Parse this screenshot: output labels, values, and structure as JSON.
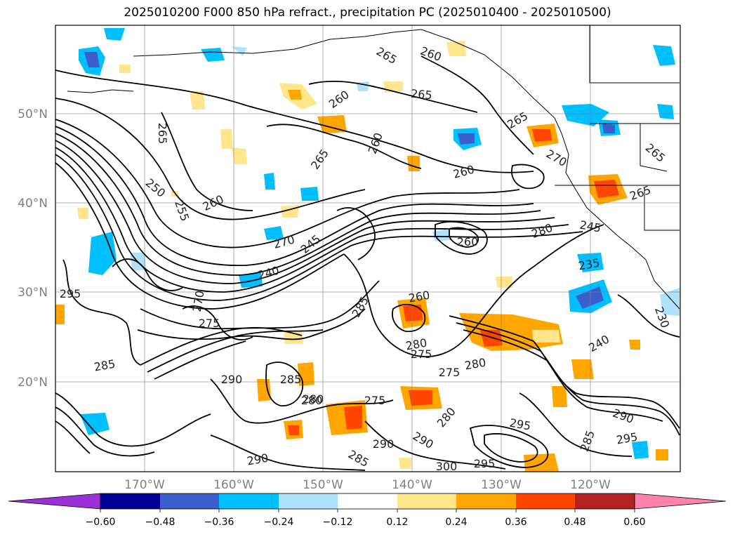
{
  "title": "2025010200 F000 850 hPa refract., precipitation PC (2025010400 - 2025010500)",
  "lat_labels": [
    "50°N",
    "40°N",
    "30°N",
    "20°N"
  ],
  "lon_labels": [
    "170°W",
    "160°W",
    "150°W",
    "140°W",
    "130°W",
    "120°W"
  ],
  "colorbar": {
    "ticks": [
      "−0.60",
      "−0.48",
      "−0.36",
      "−0.24",
      "−0.12",
      "0.12",
      "0.24",
      "0.36",
      "0.48",
      "0.60"
    ],
    "colors": [
      "#9b30d6",
      "#000096",
      "#3a5fcd",
      "#00bfff",
      "#aee2fa",
      "#ffffff",
      "#ffe68c",
      "#ffa500",
      "#ff4500",
      "#b22222",
      "#ff82ab"
    ]
  },
  "contour_labels": [
    "265",
    "260",
    "265",
    "260",
    "265",
    "265",
    "260",
    "265",
    "260",
    "270",
    "265",
    "265",
    "250",
    "255",
    "260",
    "270",
    "245",
    "260",
    "280",
    "245",
    "240",
    "270",
    "275",
    "260",
    "285",
    "230",
    "235",
    "240",
    "275",
    "280",
    "285",
    "290",
    "295",
    "280",
    "275",
    "280",
    "295",
    "290",
    "295",
    "300",
    "295",
    "285",
    "290",
    "290",
    "285",
    "290",
    "280",
    "275",
    "280",
    "285"
  ]
}
